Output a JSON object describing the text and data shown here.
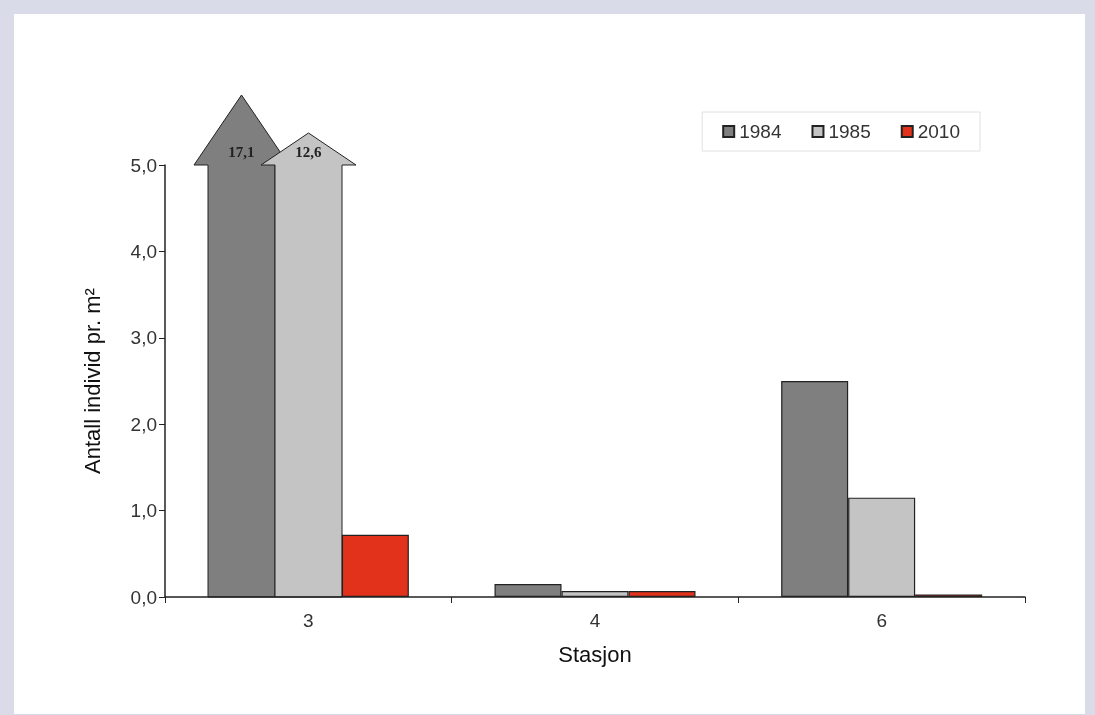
{
  "chart_data": {
    "type": "bar",
    "categories": [
      "3",
      "4",
      "6"
    ],
    "series": [
      {
        "name": "1984",
        "color": "#7f7f7f",
        "values": [
          null,
          0.15,
          2.5
        ]
      },
      {
        "name": "1985",
        "color": "#c4c4c4",
        "values": [
          null,
          0.07,
          1.15
        ]
      },
      {
        "name": "2010",
        "color": "#e2321c",
        "values": [
          0.72,
          0.07,
          0.03
        ]
      }
    ],
    "annotations": [
      "17,1",
      "12,6"
    ],
    "xlabel": "Stasjon",
    "ylabel": "Antall individ pr. m²",
    "ylim": [
      0,
      5
    ],
    "yticks": [
      {
        "value": 0,
        "label": "0,0"
      },
      {
        "value": 1,
        "label": "1,0"
      },
      {
        "value": 2,
        "label": "2,0"
      },
      {
        "value": 3,
        "label": "3,0"
      },
      {
        "value": 4,
        "label": "4,0"
      },
      {
        "value": 5,
        "label": "5,0"
      }
    ],
    "grid": false,
    "legend": "top right"
  }
}
